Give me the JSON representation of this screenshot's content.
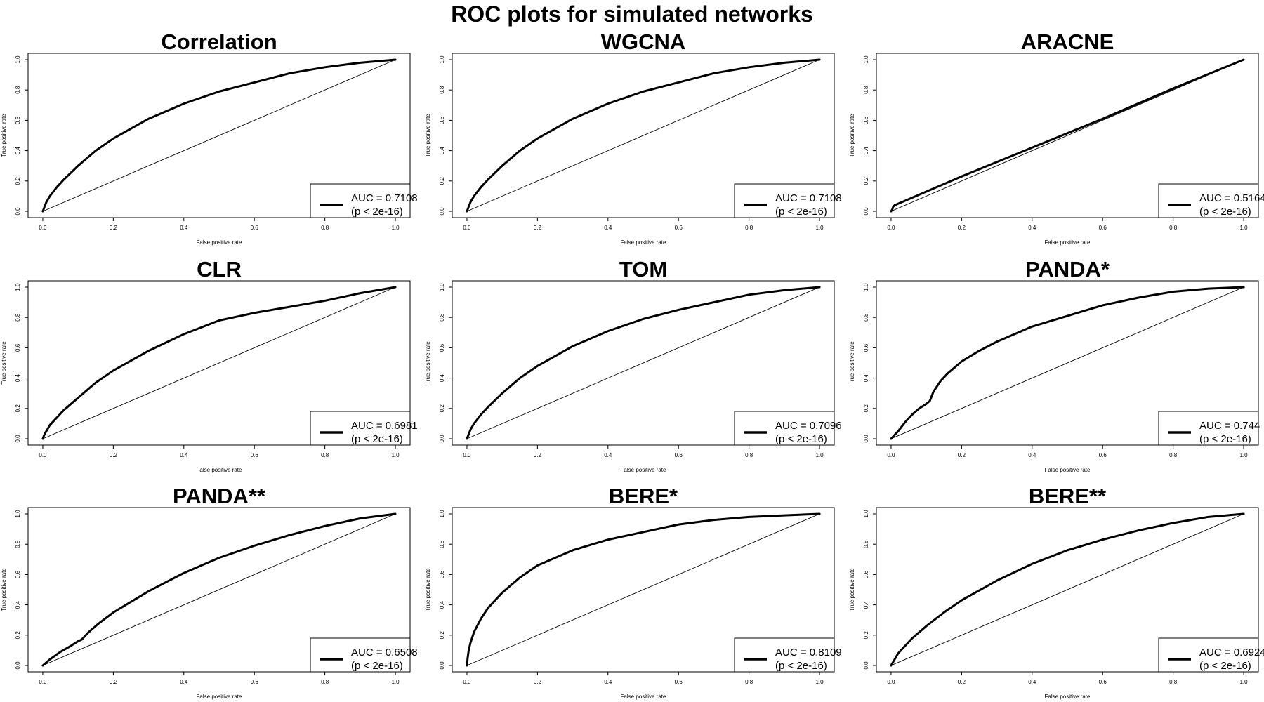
{
  "page_title": "ROC plots for simulated networks",
  "chart_data": [
    {
      "type": "line",
      "title": "Correlation",
      "xlabel": "False positive rate",
      "ylabel": "True positive rate",
      "xlim": [
        0,
        1
      ],
      "ylim": [
        0,
        1
      ],
      "xticks": [
        "0.0",
        "0.2",
        "0.4",
        "0.6",
        "0.8",
        "1.0"
      ],
      "yticks": [
        "0.0",
        "0.2",
        "0.4",
        "0.6",
        "0.8",
        "1.0"
      ],
      "grid": false,
      "legend_position": "bottom-right",
      "legend": [
        "AUC = 0.7108",
        "(p < 2e-16)"
      ],
      "series": [
        {
          "x": [
            0,
            0.005,
            0.01,
            0.02,
            0.04,
            0.06,
            0.1,
            0.15,
            0.2,
            0.3,
            0.4,
            0.5,
            0.6,
            0.7,
            0.8,
            0.9,
            1.0
          ],
          "y": [
            0,
            0.03,
            0.06,
            0.1,
            0.16,
            0.21,
            0.3,
            0.4,
            0.48,
            0.61,
            0.71,
            0.79,
            0.85,
            0.91,
            0.95,
            0.98,
            1.0
          ]
        },
        {
          "x": [
            0,
            1
          ],
          "y": [
            0,
            1
          ]
        }
      ]
    },
    {
      "type": "line",
      "title": "WGCNA",
      "xlabel": "False positive rate",
      "ylabel": "True positive rate",
      "xlim": [
        0,
        1
      ],
      "ylim": [
        0,
        1
      ],
      "xticks": [
        "0.0",
        "0.2",
        "0.4",
        "0.6",
        "0.8",
        "1.0"
      ],
      "yticks": [
        "0.0",
        "0.2",
        "0.4",
        "0.6",
        "0.8",
        "1.0"
      ],
      "grid": false,
      "legend_position": "bottom-right",
      "legend": [
        "AUC = 0.7108",
        "(p < 2e-16)"
      ],
      "series": [
        {
          "x": [
            0,
            0.005,
            0.01,
            0.02,
            0.04,
            0.06,
            0.1,
            0.15,
            0.2,
            0.3,
            0.4,
            0.5,
            0.6,
            0.7,
            0.8,
            0.9,
            1.0
          ],
          "y": [
            0,
            0.03,
            0.06,
            0.1,
            0.16,
            0.21,
            0.3,
            0.4,
            0.48,
            0.61,
            0.71,
            0.79,
            0.85,
            0.91,
            0.95,
            0.98,
            1.0
          ]
        },
        {
          "x": [
            0,
            1
          ],
          "y": [
            0,
            1
          ]
        }
      ]
    },
    {
      "type": "line",
      "title": "ARACNE",
      "xlabel": "False positive rate",
      "ylabel": "True positive rate",
      "xlim": [
        0,
        1
      ],
      "ylim": [
        0,
        1
      ],
      "xticks": [
        "0.0",
        "0.2",
        "0.4",
        "0.6",
        "0.8",
        "1.0"
      ],
      "yticks": [
        "0.0",
        "0.2",
        "0.4",
        "0.6",
        "0.8",
        "1.0"
      ],
      "grid": false,
      "legend_position": "bottom-right",
      "legend": [
        "AUC = 0.5164",
        "(p < 2e-16)"
      ],
      "series": [
        {
          "x": [
            0,
            0.003,
            0.006,
            0.01,
            0.2,
            0.4,
            0.6,
            0.8,
            1.0
          ],
          "y": [
            0,
            0.01,
            0.03,
            0.04,
            0.23,
            0.42,
            0.61,
            0.81,
            1.0
          ]
        },
        {
          "x": [
            0,
            1
          ],
          "y": [
            0,
            1
          ]
        }
      ]
    },
    {
      "type": "line",
      "title": "CLR",
      "xlabel": "False positive rate",
      "ylabel": "True positive rate",
      "xlim": [
        0,
        1
      ],
      "ylim": [
        0,
        1
      ],
      "xticks": [
        "0.0",
        "0.2",
        "0.4",
        "0.6",
        "0.8",
        "1.0"
      ],
      "yticks": [
        "0.0",
        "0.2",
        "0.4",
        "0.6",
        "0.8",
        "1.0"
      ],
      "grid": false,
      "legend_position": "bottom-right",
      "legend": [
        "AUC = 0.6981",
        "(p < 2e-16)"
      ],
      "series": [
        {
          "x": [
            0,
            0.005,
            0.01,
            0.02,
            0.04,
            0.06,
            0.1,
            0.15,
            0.2,
            0.3,
            0.4,
            0.5,
            0.54,
            0.6,
            0.7,
            0.8,
            0.9,
            1.0
          ],
          "y": [
            0,
            0.03,
            0.05,
            0.09,
            0.14,
            0.19,
            0.27,
            0.37,
            0.45,
            0.58,
            0.69,
            0.78,
            0.8,
            0.83,
            0.87,
            0.91,
            0.96,
            1.0
          ]
        },
        {
          "x": [
            0,
            1
          ],
          "y": [
            0,
            1
          ]
        }
      ]
    },
    {
      "type": "line",
      "title": "TOM",
      "xlabel": "False positive rate",
      "ylabel": "True positive rate",
      "xlim": [
        0,
        1
      ],
      "ylim": [
        0,
        1
      ],
      "xticks": [
        "0.0",
        "0.2",
        "0.4",
        "0.6",
        "0.8",
        "1.0"
      ],
      "yticks": [
        "0.0",
        "0.2",
        "0.4",
        "0.6",
        "0.8",
        "1.0"
      ],
      "grid": false,
      "legend_position": "bottom-right",
      "legend": [
        "AUC = 0.7096",
        "(p < 2e-16)"
      ],
      "series": [
        {
          "x": [
            0,
            0.005,
            0.01,
            0.02,
            0.04,
            0.06,
            0.1,
            0.15,
            0.2,
            0.3,
            0.4,
            0.5,
            0.6,
            0.7,
            0.8,
            0.9,
            1.0
          ],
          "y": [
            0,
            0.03,
            0.06,
            0.1,
            0.16,
            0.21,
            0.3,
            0.4,
            0.48,
            0.61,
            0.71,
            0.79,
            0.85,
            0.9,
            0.95,
            0.98,
            1.0
          ]
        },
        {
          "x": [
            0,
            1
          ],
          "y": [
            0,
            1
          ]
        }
      ]
    },
    {
      "type": "line",
      "title": "PANDA*",
      "xlabel": "False positive rate",
      "ylabel": "True positive rate",
      "xlim": [
        0,
        1
      ],
      "ylim": [
        0,
        1
      ],
      "xticks": [
        "0.0",
        "0.2",
        "0.4",
        "0.6",
        "0.8",
        "1.0"
      ],
      "yticks": [
        "0.0",
        "0.2",
        "0.4",
        "0.6",
        "0.8",
        "1.0"
      ],
      "grid": false,
      "legend_position": "bottom-right",
      "legend": [
        "AUC = 0.744",
        "(p < 2e-16)"
      ],
      "series": [
        {
          "x": [
            0,
            0.02,
            0.04,
            0.06,
            0.08,
            0.1,
            0.11,
            0.12,
            0.14,
            0.16,
            0.2,
            0.25,
            0.3,
            0.4,
            0.5,
            0.6,
            0.7,
            0.8,
            0.9,
            1.0
          ],
          "y": [
            0,
            0.05,
            0.11,
            0.16,
            0.2,
            0.23,
            0.25,
            0.31,
            0.38,
            0.43,
            0.51,
            0.58,
            0.64,
            0.74,
            0.81,
            0.88,
            0.93,
            0.97,
            0.99,
            1.0
          ]
        },
        {
          "x": [
            0,
            1
          ],
          "y": [
            0,
            1
          ]
        }
      ]
    },
    {
      "type": "line",
      "title": "PANDA**",
      "xlabel": "False positive rate",
      "ylabel": "True positive rate",
      "xlim": [
        0,
        1
      ],
      "ylim": [
        0,
        1
      ],
      "xticks": [
        "0.0",
        "0.2",
        "0.4",
        "0.6",
        "0.8",
        "1.0"
      ],
      "yticks": [
        "0.0",
        "0.2",
        "0.4",
        "0.6",
        "0.8",
        "1.0"
      ],
      "grid": false,
      "legend_position": "bottom-right",
      "legend": [
        "AUC = 0.6508",
        "(p < 2e-16)"
      ],
      "series": [
        {
          "x": [
            0,
            0.02,
            0.05,
            0.08,
            0.1,
            0.11,
            0.13,
            0.16,
            0.2,
            0.3,
            0.4,
            0.5,
            0.6,
            0.7,
            0.8,
            0.9,
            1.0
          ],
          "y": [
            0,
            0.04,
            0.09,
            0.13,
            0.16,
            0.17,
            0.22,
            0.28,
            0.35,
            0.49,
            0.61,
            0.71,
            0.79,
            0.86,
            0.92,
            0.97,
            1.0
          ]
        },
        {
          "x": [
            0,
            1
          ],
          "y": [
            0,
            1
          ]
        }
      ]
    },
    {
      "type": "line",
      "title": "BERE*",
      "xlabel": "False positive rate",
      "ylabel": "True positive rate",
      "xlim": [
        0,
        1
      ],
      "ylim": [
        0,
        1
      ],
      "xticks": [
        "0.0",
        "0.2",
        "0.4",
        "0.6",
        "0.8",
        "1.0"
      ],
      "yticks": [
        "0.0",
        "0.2",
        "0.4",
        "0.6",
        "0.8",
        "1.0"
      ],
      "grid": false,
      "legend_position": "bottom-right",
      "legend": [
        "AUC = 0.8109",
        "(p < 2e-16)"
      ],
      "series": [
        {
          "x": [
            0,
            0.002,
            0.005,
            0.01,
            0.02,
            0.04,
            0.06,
            0.1,
            0.15,
            0.2,
            0.3,
            0.4,
            0.5,
            0.6,
            0.7,
            0.8,
            0.9,
            1.0
          ],
          "y": [
            0,
            0.05,
            0.1,
            0.15,
            0.22,
            0.31,
            0.38,
            0.48,
            0.58,
            0.66,
            0.76,
            0.83,
            0.88,
            0.93,
            0.96,
            0.98,
            0.99,
            1.0
          ]
        },
        {
          "x": [
            0,
            1
          ],
          "y": [
            0,
            1
          ]
        }
      ]
    },
    {
      "type": "line",
      "title": "BERE**",
      "xlabel": "False positive rate",
      "ylabel": "True positive rate",
      "xlim": [
        0,
        1
      ],
      "ylim": [
        0,
        1
      ],
      "xticks": [
        "0.0",
        "0.2",
        "0.4",
        "0.6",
        "0.8",
        "1.0"
      ],
      "yticks": [
        "0.0",
        "0.2",
        "0.4",
        "0.6",
        "0.8",
        "1.0"
      ],
      "grid": false,
      "legend_position": "bottom-right",
      "legend": [
        "AUC = 0.6924",
        "(p < 2e-16)"
      ],
      "series": [
        {
          "x": [
            0,
            0.005,
            0.01,
            0.02,
            0.04,
            0.06,
            0.1,
            0.15,
            0.2,
            0.3,
            0.4,
            0.5,
            0.6,
            0.7,
            0.8,
            0.9,
            1.0
          ],
          "y": [
            0,
            0.02,
            0.04,
            0.08,
            0.13,
            0.18,
            0.26,
            0.35,
            0.43,
            0.56,
            0.67,
            0.76,
            0.83,
            0.89,
            0.94,
            0.98,
            1.0
          ]
        },
        {
          "x": [
            0,
            1
          ],
          "y": [
            0,
            1
          ]
        }
      ]
    }
  ]
}
